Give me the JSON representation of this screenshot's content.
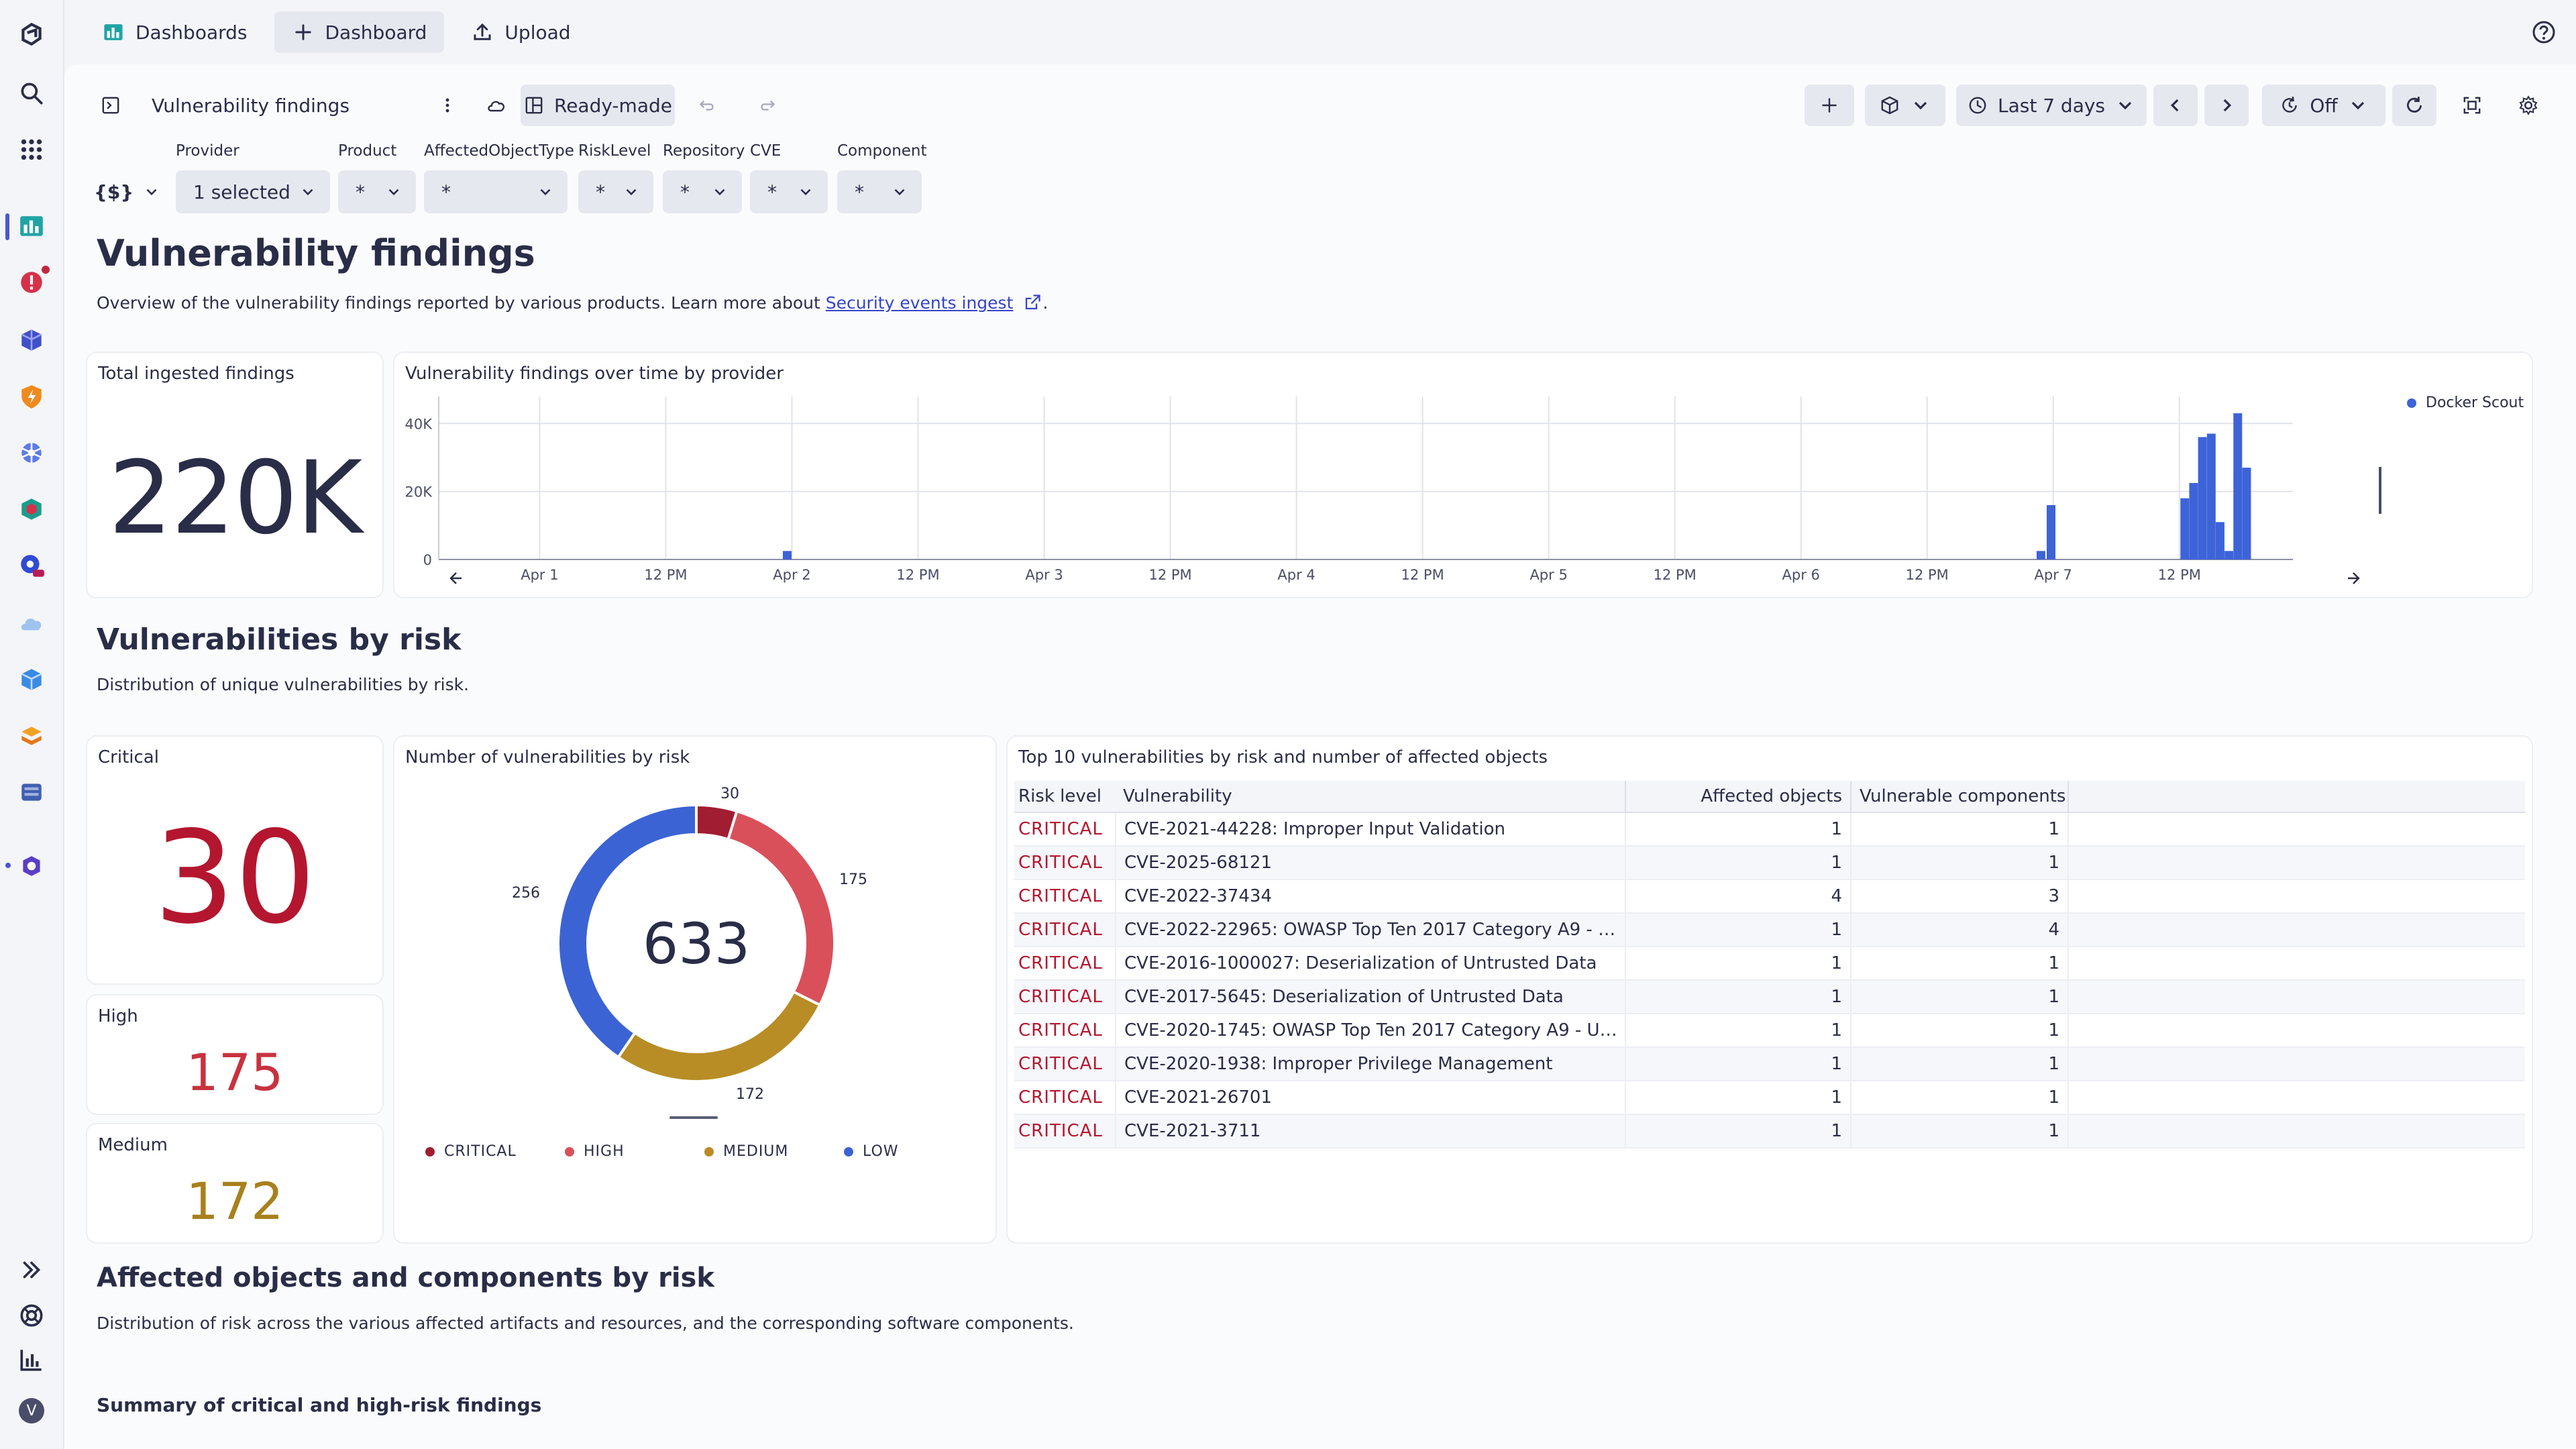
{
  "topbar": {
    "dashboards_label": "Dashboards",
    "new_dashboard_label": "Dashboard",
    "upload_label": "Upload"
  },
  "toolbar": {
    "dashboard_title": "Vulnerability findings",
    "readymade_label": "Ready-made",
    "timeframe_label": "Last 7 days",
    "refresh_label": "Off"
  },
  "filters": {
    "variables_label": "{$}",
    "items": [
      {
        "label": "Provider",
        "value": "1 selected"
      },
      {
        "label": "Product",
        "value": "*"
      },
      {
        "label": "AffectedObjectType",
        "value": "*"
      },
      {
        "label": "RiskLevel",
        "value": "*"
      },
      {
        "label": "Repository",
        "value": "*"
      },
      {
        "label": "CVE",
        "value": "*"
      },
      {
        "label": "Component",
        "value": "*"
      }
    ]
  },
  "page": {
    "title": "Vulnerability findings",
    "desc_prefix": "Overview of the vulnerability findings reported by various products. Learn more about ",
    "desc_link": "Security events ingest",
    "desc_suffix": "."
  },
  "total_card": {
    "title": "Total ingested findings",
    "value": "220K"
  },
  "timeseries": {
    "title": "Vulnerability findings over time by provider",
    "legend": "Docker Scout",
    "series_color": "#3d63d9",
    "y_ticks": [
      "40K",
      "20K",
      "0"
    ],
    "x_ticks": [
      "Apr 1",
      "12 PM",
      "Apr 2",
      "12 PM",
      "Apr 3",
      "12 PM",
      "Apr 4",
      "12 PM",
      "Apr 5",
      "12 PM",
      "Apr 6",
      "12 PM",
      "Apr 7",
      "12 PM"
    ]
  },
  "chart_data": [
    {
      "type": "bar",
      "title": "Vulnerability findings over time by provider",
      "xlabel": "",
      "ylabel": "",
      "ylim": [
        0,
        44000
      ],
      "series": [
        {
          "name": "Docker Scout",
          "color": "#3d63d9"
        }
      ],
      "bars": [
        {
          "day": 1.98,
          "value": 2500
        },
        {
          "day": 6.95,
          "value": 2500
        },
        {
          "day": 6.99,
          "value": 16000
        },
        {
          "day": 7.52,
          "value": 18000
        },
        {
          "day": 7.555,
          "value": 22500
        },
        {
          "day": 7.59,
          "value": 36000
        },
        {
          "day": 7.625,
          "value": 37000
        },
        {
          "day": 7.66,
          "value": 11000
        },
        {
          "day": 7.695,
          "value": 2500
        },
        {
          "day": 7.73,
          "value": 43000
        },
        {
          "day": 7.765,
          "value": 27000
        }
      ]
    },
    {
      "type": "pie",
      "title": "Number of vulnerabilities by risk",
      "center_label": "633",
      "slices": [
        {
          "label": "CRITICAL",
          "value": 30,
          "color": "#a11d32"
        },
        {
          "label": "HIGH",
          "value": 175,
          "color": "#d9505b"
        },
        {
          "label": "MEDIUM",
          "value": 172,
          "color": "#b88d26"
        },
        {
          "label": "LOW",
          "value": 256,
          "color": "#3b63d4"
        }
      ]
    }
  ],
  "risk_section": {
    "title": "Vulnerabilities by risk",
    "desc": "Distribution of unique vulnerabilities by risk."
  },
  "risk_cards": {
    "critical": {
      "label": "Critical",
      "value": "30",
      "color": "#b4162f"
    },
    "high": {
      "label": "High",
      "value": "175",
      "color": "#c8323f"
    },
    "medium": {
      "label": "Medium",
      "value": "172",
      "color": "#a9801d"
    }
  },
  "donut": {
    "title": "Number of vulnerabilities by risk",
    "total": "633",
    "labels": {
      "critical": "30",
      "high": "175",
      "medium": "172",
      "low": "256"
    },
    "legend": [
      "CRITICAL",
      "HIGH",
      "MEDIUM",
      "LOW"
    ]
  },
  "top10": {
    "title": "Top 10 vulnerabilities by risk and number of affected objects",
    "headers": [
      "Risk level",
      "Vulnerability",
      "Affected objects",
      "Vulnerable components"
    ],
    "rows": [
      {
        "risk": "CRITICAL",
        "vuln": "CVE-2021-44228: Improper Input Validation",
        "affected": "1",
        "components": "1"
      },
      {
        "risk": "CRITICAL",
        "vuln": "CVE-2025-68121",
        "affected": "1",
        "components": "1"
      },
      {
        "risk": "CRITICAL",
        "vuln": "CVE-2022-37434",
        "affected": "4",
        "components": "3"
      },
      {
        "risk": "CRITICAL",
        "vuln": "CVE-2022-22965: OWASP Top Ten 2017 Category A9 - Us...",
        "affected": "1",
        "components": "4"
      },
      {
        "risk": "CRITICAL",
        "vuln": "CVE-2016-1000027: Deserialization of Untrusted Data",
        "affected": "1",
        "components": "1"
      },
      {
        "risk": "CRITICAL",
        "vuln": "CVE-2017-5645: Deserialization of Untrusted Data",
        "affected": "1",
        "components": "1"
      },
      {
        "risk": "CRITICAL",
        "vuln": "CVE-2020-1745: OWASP Top Ten 2017 Category A9 - Usi...",
        "affected": "1",
        "components": "1"
      },
      {
        "risk": "CRITICAL",
        "vuln": "CVE-2020-1938: Improper Privilege Management",
        "affected": "1",
        "components": "1"
      },
      {
        "risk": "CRITICAL",
        "vuln": "CVE-2021-26701",
        "affected": "1",
        "components": "1"
      },
      {
        "risk": "CRITICAL",
        "vuln": "CVE-2021-3711",
        "affected": "1",
        "components": "1"
      }
    ]
  },
  "affected_section": {
    "title": "Affected objects and components by risk",
    "desc": "Distribution of risk across the various affected artifacts and resources, and the corresponding software components.",
    "subheading": "Summary of critical and high-risk findings"
  },
  "user": {
    "avatar_letter": "V"
  }
}
